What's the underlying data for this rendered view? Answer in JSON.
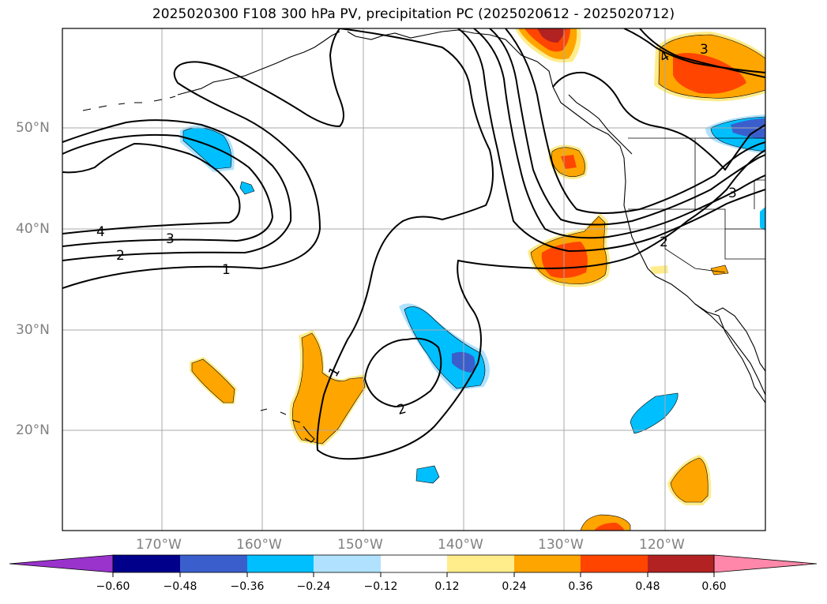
{
  "map": {
    "title": "2025020300 F108 300 hPa PV, precipitation PC (2025020612 - 2025020712)",
    "lat_labels": [
      "50°N",
      "40°N",
      "30°N",
      "20°N"
    ],
    "lon_labels": [
      "170°W",
      "160°W",
      "150°W",
      "140°W",
      "130°W",
      "120°W"
    ],
    "pv_contour_labels": [
      {
        "id": "pv-label-4-west",
        "text": "4"
      },
      {
        "id": "pv-label-3-west",
        "text": "3"
      },
      {
        "id": "pv-label-2-west",
        "text": "2"
      },
      {
        "id": "pv-label-1-west",
        "text": "1"
      },
      {
        "id": "pv-label-1-central",
        "text": "1"
      },
      {
        "id": "pv-label-2-central",
        "text": "2"
      },
      {
        "id": "pv-label-2-east",
        "text": "2"
      },
      {
        "id": "pv-label-3-east",
        "text": "3"
      },
      {
        "id": "pv-label-3-ne",
        "text": "3"
      },
      {
        "id": "pv-label-4-ne",
        "text": "4"
      }
    ]
  },
  "colorbar": {
    "ticks": [
      "−0.60",
      "−0.48",
      "−0.36",
      "−0.24",
      "−0.12",
      "0.12",
      "0.24",
      "0.36",
      "0.48",
      "0.60"
    ],
    "colors": [
      "#9933cc",
      "#00008b",
      "#3a5fcd",
      "#00bfff",
      "#b0e2ff",
      "#ffffff",
      "#ffec8b",
      "#ffa500",
      "#ff4500",
      "#b22222",
      "#ff88aa"
    ]
  }
}
